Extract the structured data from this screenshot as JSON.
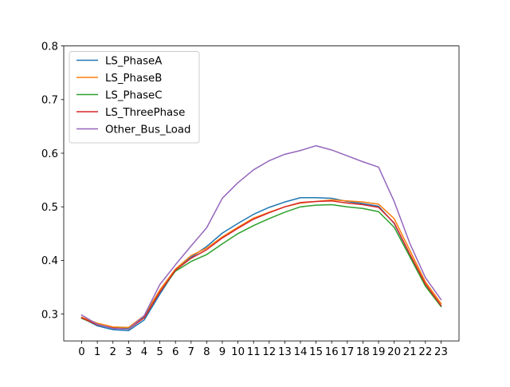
{
  "chart_data": {
    "type": "line",
    "title": "",
    "xlabel": "",
    "ylabel": "",
    "x": [
      0,
      1,
      2,
      3,
      4,
      5,
      6,
      7,
      8,
      9,
      10,
      11,
      12,
      13,
      14,
      15,
      16,
      17,
      18,
      19,
      20,
      21,
      22,
      23
    ],
    "xlim": [
      -1.15,
      24.15
    ],
    "ylim": [
      0.25,
      0.8
    ],
    "yticks": [
      0.3,
      0.4,
      0.5,
      0.6,
      0.7,
      0.8
    ],
    "ytick_labels": [
      "0.3",
      "0.4",
      "0.5",
      "0.6",
      "0.7",
      "0.8"
    ],
    "xtick_labels": [
      "0",
      "1",
      "2",
      "3",
      "4",
      "5",
      "6",
      "7",
      "8",
      "9",
      "10",
      "11",
      "12",
      "13",
      "14",
      "15",
      "16",
      "17",
      "18",
      "19",
      "20",
      "21",
      "22",
      "23"
    ],
    "grid": false,
    "legend_position": "top-left",
    "series": [
      {
        "name": "LS_PhaseA",
        "color": "#1f77b4",
        "values": [
          0.293,
          0.278,
          0.271,
          0.269,
          0.289,
          0.337,
          0.382,
          0.406,
          0.426,
          0.451,
          0.469,
          0.486,
          0.499,
          0.509,
          0.517,
          0.517,
          0.516,
          0.51,
          0.506,
          0.501,
          0.469,
          0.411,
          0.356,
          0.315
        ]
      },
      {
        "name": "LS_PhaseB",
        "color": "#ff7f0e",
        "values": [
          0.294,
          0.283,
          0.276,
          0.275,
          0.297,
          0.345,
          0.384,
          0.409,
          0.423,
          0.444,
          0.462,
          0.479,
          0.49,
          0.5,
          0.507,
          0.51,
          0.513,
          0.511,
          0.509,
          0.505,
          0.478,
          0.419,
          0.36,
          0.32
        ]
      },
      {
        "name": "LS_PhaseC",
        "color": "#2ca02c",
        "values": [
          0.292,
          0.28,
          0.274,
          0.273,
          0.294,
          0.341,
          0.38,
          0.398,
          0.411,
          0.431,
          0.45,
          0.465,
          0.478,
          0.49,
          0.5,
          0.503,
          0.504,
          0.5,
          0.497,
          0.491,
          0.462,
          0.407,
          0.352,
          0.314
        ]
      },
      {
        "name": "LS_ThreePhase",
        "color": "#d62728",
        "values": [
          0.293,
          0.28,
          0.274,
          0.272,
          0.293,
          0.341,
          0.382,
          0.404,
          0.42,
          0.442,
          0.46,
          0.477,
          0.489,
          0.5,
          0.508,
          0.51,
          0.511,
          0.507,
          0.504,
          0.499,
          0.47,
          0.412,
          0.356,
          0.316
        ]
      },
      {
        "name": "Other_Bus_Load",
        "color": "#9467bd",
        "values": [
          0.298,
          0.281,
          0.273,
          0.272,
          0.297,
          0.355,
          0.392,
          0.427,
          0.461,
          0.516,
          0.545,
          0.569,
          0.586,
          0.598,
          0.605,
          0.614,
          0.606,
          0.595,
          0.584,
          0.574,
          0.51,
          0.432,
          0.368,
          0.327
        ]
      }
    ]
  }
}
